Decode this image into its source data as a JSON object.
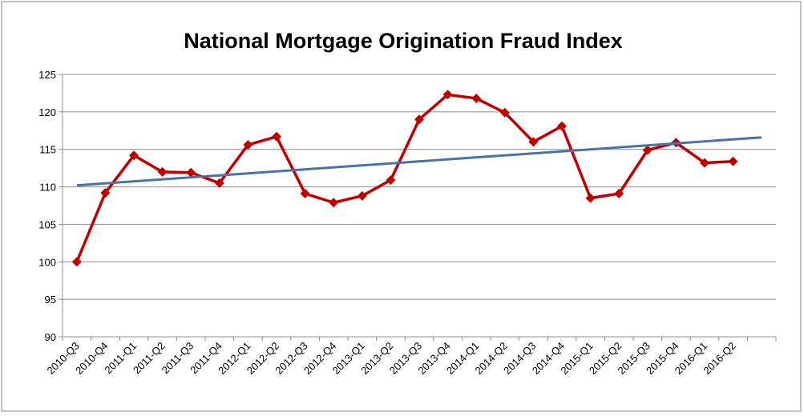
{
  "chart_data": {
    "type": "line",
    "title": "National Mortgage Origination Fraud Index",
    "categories": [
      "2010-Q3",
      "2010-Q4",
      "2011-Q1",
      "2011-Q2",
      "2011-Q3",
      "2011-Q4",
      "2012-Q1",
      "2012-Q2",
      "2012-Q3",
      "2012-Q4",
      "2013-Q1",
      "2013-Q2",
      "2013-Q3",
      "2013-Q4",
      "2014-Q1",
      "2014-Q2",
      "2014-Q3",
      "2014-Q4",
      "2015-Q1",
      "2015-Q2",
      "2015-Q3",
      "2015-Q4",
      "2016-Q1",
      "2016-Q2",
      null
    ],
    "series": [
      {
        "color": "#c00000",
        "values": [
          100,
          109.2,
          114.2,
          112.0,
          111.9,
          110.5,
          115.6,
          116.7,
          109.1,
          107.9,
          108.8,
          110.9,
          119.0,
          122.3,
          121.8,
          119.9,
          116.0,
          118.1,
          108.5,
          109.1,
          114.9,
          115.9,
          113.2,
          113.4,
          null
        ]
      }
    ],
    "trendline": {
      "color": "#4a72a8",
      "start": 110.2,
      "end": 116.6
    },
    "ylim": [
      90,
      125
    ],
    "yticks": [
      90,
      95,
      100,
      105,
      110,
      115,
      120,
      125
    ],
    "grid": true
  }
}
